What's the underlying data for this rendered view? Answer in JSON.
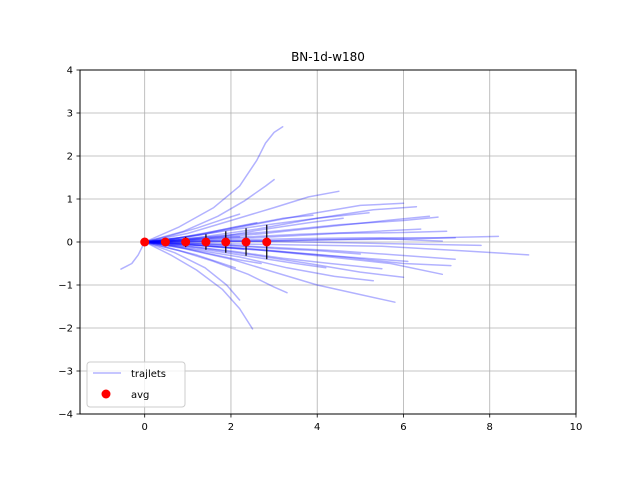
{
  "chart_data": {
    "type": "line",
    "title": "BN-1d-w180",
    "xlabel": "",
    "ylabel": "",
    "xlim": [
      -1.5,
      10
    ],
    "ylim": [
      -4,
      4
    ],
    "xticks": [
      "0",
      "2",
      "4",
      "6",
      "8",
      "10"
    ],
    "yticks": [
      "−4",
      "−3",
      "−2",
      "−1",
      "0",
      "1",
      "2",
      "3",
      "4"
    ],
    "grid": true,
    "legend_position": "lower-left",
    "colors": {
      "trajlets": "#0000ff",
      "avg": "#ff0000",
      "errorbar": "#000000"
    },
    "series": [
      {
        "name": "trajlets",
        "kind": "line",
        "note_alpha": 0.3,
        "lines": [
          [
            [
              0,
              0
            ],
            [
              0.8,
              0.35
            ],
            [
              1.6,
              0.8
            ],
            [
              2.2,
              1.3
            ],
            [
              2.6,
              1.9
            ],
            [
              2.8,
              2.3
            ],
            [
              3.0,
              2.55
            ],
            [
              3.2,
              2.68
            ]
          ],
          [
            [
              0,
              0
            ],
            [
              0.9,
              0.25
            ],
            [
              1.7,
              0.6
            ],
            [
              2.3,
              0.95
            ],
            [
              2.8,
              1.3
            ],
            [
              3.0,
              1.45
            ]
          ],
          [
            [
              0,
              0
            ],
            [
              1.0,
              0.2
            ],
            [
              2.0,
              0.5
            ],
            [
              3.0,
              0.8
            ],
            [
              3.8,
              1.05
            ],
            [
              4.5,
              1.18
            ]
          ],
          [
            [
              0,
              0
            ],
            [
              1.2,
              0.15
            ],
            [
              2.5,
              0.4
            ],
            [
              3.8,
              0.65
            ],
            [
              5.0,
              0.85
            ],
            [
              6.0,
              0.9
            ]
          ],
          [
            [
              0,
              0
            ],
            [
              1.2,
              0.1
            ],
            [
              2.6,
              0.3
            ],
            [
              4.0,
              0.55
            ],
            [
              5.3,
              0.75
            ],
            [
              6.3,
              0.82
            ]
          ],
          [
            [
              0,
              0
            ],
            [
              1.3,
              0.08
            ],
            [
              2.8,
              0.2
            ],
            [
              4.2,
              0.35
            ],
            [
              5.6,
              0.5
            ],
            [
              6.6,
              0.6
            ]
          ],
          [
            [
              0,
              0
            ],
            [
              1.5,
              0.05
            ],
            [
              3.0,
              0.12
            ],
            [
              4.5,
              0.2
            ],
            [
              6.0,
              0.22
            ],
            [
              7.0,
              0.25
            ]
          ],
          [
            [
              0,
              0
            ],
            [
              1.8,
              0.04
            ],
            [
              3.5,
              0.08
            ],
            [
              5.2,
              0.1
            ],
            [
              6.8,
              0.1
            ],
            [
              8.2,
              0.13
            ]
          ],
          [
            [
              0,
              0
            ],
            [
              1.4,
              0.02
            ],
            [
              2.9,
              0.03
            ],
            [
              4.4,
              0.05
            ],
            [
              5.9,
              0.07
            ],
            [
              7.2,
              0.1
            ]
          ],
          [
            [
              0,
              0
            ],
            [
              1.8,
              -0.04
            ],
            [
              3.6,
              -0.07
            ],
            [
              5.5,
              -0.1
            ],
            [
              7.3,
              -0.2
            ],
            [
              8.9,
              -0.3
            ]
          ],
          [
            [
              0,
              0
            ],
            [
              1.4,
              -0.05
            ],
            [
              2.9,
              -0.12
            ],
            [
              4.4,
              -0.2
            ],
            [
              5.8,
              -0.3
            ],
            [
              7.2,
              -0.4
            ]
          ],
          [
            [
              0,
              0
            ],
            [
              1.3,
              -0.08
            ],
            [
              2.8,
              -0.2
            ],
            [
              4.3,
              -0.35
            ],
            [
              5.7,
              -0.5
            ],
            [
              6.9,
              -0.75
            ]
          ],
          [
            [
              0,
              0
            ],
            [
              1.2,
              -0.12
            ],
            [
              2.5,
              -0.3
            ],
            [
              3.8,
              -0.5
            ],
            [
              5.0,
              -0.7
            ],
            [
              6.0,
              -0.82
            ]
          ],
          [
            [
              0,
              0
            ],
            [
              1.0,
              -0.15
            ],
            [
              2.2,
              -0.35
            ],
            [
              3.3,
              -0.6
            ],
            [
              4.4,
              -0.8
            ],
            [
              5.3,
              -0.9
            ]
          ],
          [
            [
              0,
              0
            ],
            [
              0.9,
              -0.15
            ],
            [
              2.0,
              -0.4
            ],
            [
              3.0,
              -0.7
            ],
            [
              4.0,
              -1.0
            ],
            [
              4.9,
              -1.2
            ],
            [
              5.8,
              -1.4
            ]
          ],
          [
            [
              0,
              0
            ],
            [
              0.8,
              -0.2
            ],
            [
              1.6,
              -0.45
            ],
            [
              2.4,
              -0.75
            ],
            [
              3.0,
              -1.05
            ],
            [
              3.3,
              -1.18
            ]
          ],
          [
            [
              0,
              0
            ],
            [
              0.7,
              -0.25
            ],
            [
              1.4,
              -0.6
            ],
            [
              1.9,
              -1.0
            ],
            [
              2.2,
              -1.35
            ]
          ],
          [
            [
              0,
              0
            ],
            [
              0.6,
              -0.3
            ],
            [
              1.2,
              -0.65
            ],
            [
              1.8,
              -1.1
            ],
            [
              2.2,
              -1.55
            ],
            [
              2.5,
              -2.02
            ]
          ],
          [
            [
              0,
              0
            ],
            [
              0.9,
              0.05
            ],
            [
              1.9,
              0.15
            ],
            [
              2.8,
              0.3
            ],
            [
              3.8,
              0.45
            ],
            [
              4.6,
              0.55
            ]
          ],
          [
            [
              0,
              0
            ],
            [
              1.0,
              -0.03
            ],
            [
              2.0,
              -0.08
            ],
            [
              3.0,
              -0.15
            ],
            [
              4.0,
              -0.2
            ],
            [
              5.0,
              -0.28
            ]
          ],
          [
            [
              0,
              0
            ],
            [
              1.2,
              0.06
            ],
            [
              2.4,
              0.12
            ],
            [
              3.6,
              0.18
            ],
            [
              4.8,
              0.22
            ],
            [
              6.4,
              0.3
            ]
          ],
          [
            [
              0,
              0
            ],
            [
              1.1,
              -0.06
            ],
            [
              2.3,
              -0.14
            ],
            [
              3.5,
              -0.25
            ],
            [
              4.7,
              -0.35
            ],
            [
              6.1,
              -0.45
            ]
          ],
          [
            [
              0,
              0
            ],
            [
              0.8,
              0.1
            ],
            [
              1.6,
              0.25
            ],
            [
              2.4,
              0.4
            ],
            [
              3.2,
              0.55
            ],
            [
              3.9,
              0.62
            ]
          ],
          [
            [
              0,
              0
            ],
            [
              0.7,
              0.08
            ],
            [
              1.4,
              0.2
            ],
            [
              2.1,
              0.35
            ],
            [
              2.6,
              0.45
            ]
          ],
          [
            [
              0,
              0
            ],
            [
              0.7,
              -0.1
            ],
            [
              1.4,
              -0.25
            ],
            [
              2.1,
              -0.4
            ],
            [
              2.7,
              -0.5
            ]
          ],
          [
            [
              0,
              0
            ],
            [
              0.8,
              -0.1
            ],
            [
              1.7,
              -0.22
            ],
            [
              2.6,
              -0.36
            ],
            [
              3.5,
              -0.5
            ],
            [
              4.2,
              -0.6
            ]
          ],
          [
            [
              0,
              0
            ],
            [
              1.5,
              0.12
            ],
            [
              3.0,
              0.25
            ],
            [
              4.5,
              0.4
            ],
            [
              6.0,
              0.5
            ],
            [
              6.8,
              0.58
            ]
          ],
          [
            [
              0,
              0
            ],
            [
              1.5,
              -0.1
            ],
            [
              3.1,
              -0.22
            ],
            [
              4.6,
              -0.35
            ],
            [
              6.0,
              -0.5
            ],
            [
              7.1,
              -0.55
            ]
          ],
          [
            [
              0,
              0
            ],
            [
              1.6,
              0.02
            ],
            [
              3.2,
              0.01
            ],
            [
              4.8,
              -0.02
            ],
            [
              6.4,
              -0.05
            ],
            [
              7.8,
              -0.08
            ]
          ],
          [
            [
              0,
              0
            ],
            [
              0.5,
              0.02
            ],
            [
              1.1,
              0.05
            ],
            [
              1.7,
              0.1
            ],
            [
              2.2,
              0.12
            ]
          ],
          [
            [
              0,
              0
            ],
            [
              0.5,
              -0.03
            ],
            [
              1.1,
              -0.07
            ],
            [
              1.7,
              -0.12
            ],
            [
              2.3,
              -0.17
            ]
          ],
          [
            [
              0,
              0
            ],
            [
              0.6,
              0.15
            ],
            [
              1.2,
              0.32
            ],
            [
              1.8,
              0.52
            ],
            [
              2.2,
              0.65
            ]
          ],
          [
            [
              0,
              0
            ],
            [
              0.6,
              -0.15
            ],
            [
              1.2,
              -0.3
            ],
            [
              1.8,
              -0.5
            ],
            [
              2.1,
              -0.6
            ]
          ],
          [
            [
              0,
              0
            ],
            [
              1.0,
              0.12
            ],
            [
              2.0,
              0.28
            ],
            [
              3.0,
              0.42
            ],
            [
              4.0,
              0.55
            ],
            [
              5.2,
              0.68
            ]
          ],
          [
            [
              0,
              0
            ],
            [
              1.0,
              -0.1
            ],
            [
              2.1,
              -0.22
            ],
            [
              3.2,
              -0.38
            ],
            [
              4.3,
              -0.5
            ],
            [
              5.5,
              -0.62
            ]
          ],
          [
            [
              0,
              0
            ],
            [
              1.3,
              0.0
            ],
            [
              2.7,
              0.02
            ],
            [
              4.1,
              0.05
            ],
            [
              5.5,
              0.08
            ],
            [
              6.9,
              0.02
            ]
          ],
          [
            [
              0,
              0
            ],
            [
              -0.05,
              -0.1
            ],
            [
              -0.15,
              -0.3
            ],
            [
              -0.3,
              -0.5
            ],
            [
              -0.55,
              -0.63
            ]
          ]
        ]
      },
      {
        "name": "avg",
        "kind": "scatter",
        "x": [
          0.0,
          0.48,
          0.95,
          1.42,
          1.88,
          2.35,
          2.83
        ],
        "y": [
          0.0,
          0.0,
          0.0,
          0.0,
          0.0,
          0.0,
          0.0
        ],
        "yerr": [
          0.0,
          0.05,
          0.12,
          0.18,
          0.25,
          0.32,
          0.4
        ]
      }
    ]
  }
}
